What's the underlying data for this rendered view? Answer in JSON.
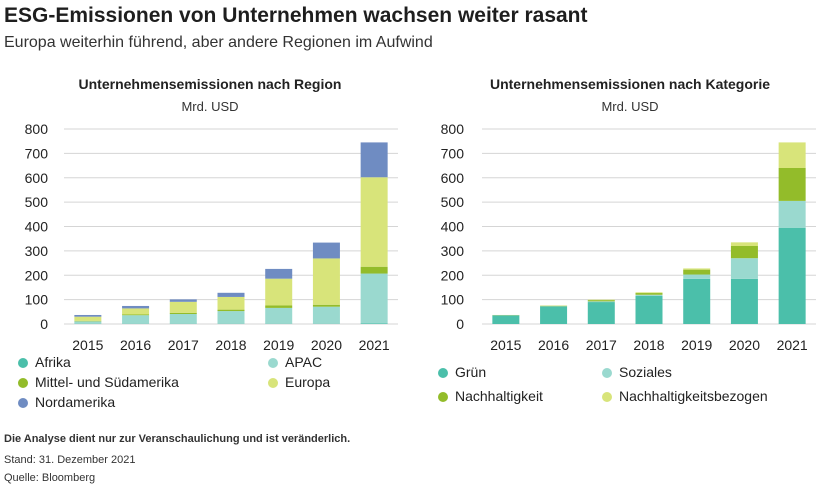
{
  "header": {
    "title": "ESG-Emissionen von Unternehmen wachsen weiter rasant",
    "subtitle": "Europa weiterhin führend, aber andere Regionen im Aufwind"
  },
  "colors": {
    "afrika": "#4bbfaa",
    "apac": "#9ad9cf",
    "mittel_suedamerika": "#93bc2a",
    "europa": "#d8e47a",
    "nordamerika": "#6f8cc2",
    "gruen": "#4bbfaa",
    "soziales": "#9ad9cf",
    "nachhaltigkeit": "#93bc2a",
    "nachhaltigkeitsbezogen": "#d8e47a",
    "grid": "#d5d5d5"
  },
  "chart_data": [
    {
      "type": "bar",
      "stacked": true,
      "title": "Unternehmensemissionen nach Region",
      "ylabel": "Mrd. USD",
      "categories": [
        "2015",
        "2016",
        "2017",
        "2018",
        "2019",
        "2020",
        "2021"
      ],
      "yticks": [
        "800",
        "700",
        "600",
        "500",
        "400",
        "300",
        "200",
        "100",
        "0"
      ],
      "ylim": [
        0,
        800
      ],
      "grid": true,
      "series": [
        {
          "name": "Afrika",
          "color_key": "afrika",
          "values": [
            1,
            1,
            1,
            1,
            1,
            1,
            2
          ]
        },
        {
          "name": "APAC",
          "color_key": "apac",
          "values": [
            10,
            35,
            40,
            52,
            65,
            70,
            205
          ]
        },
        {
          "name": "Mittel- und Südamerika",
          "color_key": "mittel_suedamerika",
          "values": [
            2,
            3,
            5,
            6,
            10,
            8,
            28
          ]
        },
        {
          "name": "Europa",
          "color_key": "europa",
          "values": [
            17,
            25,
            45,
            52,
            110,
            190,
            367
          ]
        },
        {
          "name": "Nordamerika",
          "color_key": "nordamerika",
          "values": [
            7,
            10,
            10,
            17,
            40,
            65,
            143
          ]
        }
      ],
      "legend": "bottom"
    },
    {
      "type": "bar",
      "stacked": true,
      "title": "Unternehmensemissionen nach Kategorie",
      "ylabel": "Mrd. USD",
      "categories": [
        "2015",
        "2016",
        "2017",
        "2018",
        "2019",
        "2020",
        "2021"
      ],
      "yticks": [
        "800",
        "700",
        "600",
        "500",
        "400",
        "300",
        "200",
        "100",
        "0"
      ],
      "ylim": [
        0,
        800
      ],
      "grid": true,
      "series": [
        {
          "name": "Grün",
          "color_key": "gruen",
          "values": [
            35,
            72,
            90,
            115,
            185,
            185,
            395
          ]
        },
        {
          "name": "Soziales",
          "color_key": "soziales",
          "values": [
            1,
            1,
            3,
            5,
            18,
            85,
            110
          ]
        },
        {
          "name": "Nachhaltigkeit",
          "color_key": "nachhaltigkeit",
          "values": [
            1,
            2,
            5,
            7,
            20,
            50,
            135
          ]
        },
        {
          "name": "Nachhaltigkeitsbezogen",
          "color_key": "nachhaltigkeitsbezogen",
          "values": [
            0,
            1,
            2,
            3,
            5,
            15,
            105
          ]
        }
      ],
      "legend": "bottom"
    }
  ],
  "legend_left": [
    {
      "label": "Afrika",
      "color_key": "afrika"
    },
    {
      "label": "APAC",
      "color_key": "apac"
    },
    {
      "label": "Mittel- und Südamerika",
      "color_key": "mittel_suedamerika"
    },
    {
      "label": "Europa",
      "color_key": "europa"
    },
    {
      "label": "Nordamerika",
      "color_key": "nordamerika"
    }
  ],
  "legend_right": [
    {
      "label": "Grün",
      "color_key": "gruen"
    },
    {
      "label": "Soziales",
      "color_key": "soziales"
    },
    {
      "label": "Nachhaltigkeit",
      "color_key": "nachhaltigkeit"
    },
    {
      "label": "Nachhaltigkeitsbezogen",
      "color_key": "nachhaltigkeitsbezogen"
    }
  ],
  "footnotes": {
    "disclaimer": "Die Analyse dient nur zur Veranschaulichung und ist veränderlich.",
    "stand": "Stand: 31. Dezember 2021",
    "source": "Quelle: Bloomberg"
  }
}
